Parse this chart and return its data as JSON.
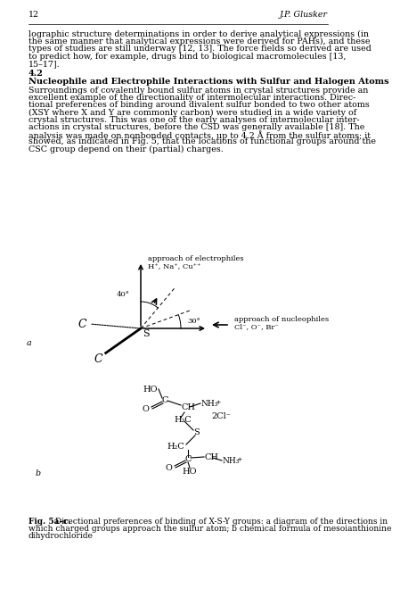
{
  "background_color": "#ffffff",
  "page_number": "12",
  "author": "J.P. Glusker",
  "body_text_1": "lographic structure determinations in order to derive analytical expressions (in\nthe same manner that analytical expressions were derived for PAHs), and these\ntypes of studies are still underway [12, 13]. The force fields so derived are used\nto predict how, for example, drugs bind to biological macromolecules [13,\n15–17].",
  "section_number": "4.2",
  "section_title": "Nucleophile and Electrophile Interactions with Sulfur and Halogen Atoms",
  "body_text_2": "Surroundings of covalently bound sulfur atoms in crystal structures provide an\nexcellent example of the directionality of intermolecular interactions. Direc-\ntional preferences of binding around divalent sulfur bonded to two other atoms\n(XSY where X and Y are commonly carbon) were studied in a wide variety of\ncrystal structures. This was one of the early analyses of intermolecular inter-\nactions in crystal structures, before the CSD was generally available [18]. The\nanalysis was made on nonbonded contacts, up to 4.2 Å from the sulfur atoms; it\nshowed, as indicated in Fig. 5, that the locations of functional groups around the\nCSC group depend on their (partial) charges.",
  "fig_caption_bold": "Fig. 5a–c.",
  "fig_caption_rest": " Directional preferences of binding of X-S-Y groups: a diagram of the directions in\nwhich charged groups approach the sulfur atom; b chemical formula of mesoianthionine\ndihydrochloride",
  "text_fontsize": 6.8,
  "small_fontsize": 6.0,
  "heading_fontsize": 7.0,
  "caption_fontsize": 6.5,
  "ml": 22,
  "mr": 358
}
